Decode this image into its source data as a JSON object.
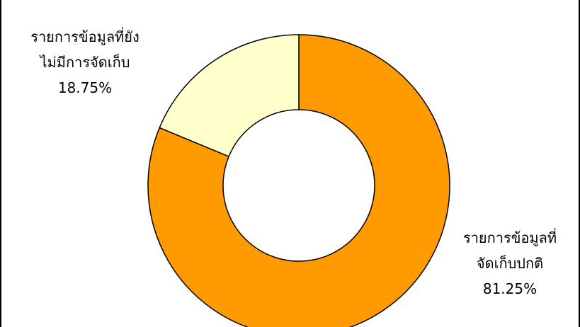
{
  "chart_data": {
    "type": "pie",
    "variant": "donut",
    "title": "",
    "categories": [
      "รายการข้อมูลที่จัดเก็บปกติ",
      "รายการข้อมูลที่ยังไม่มีการจัดเก็บ"
    ],
    "values": [
      81.25,
      18.75
    ],
    "unit": "%",
    "colors": [
      "#ff9a00",
      "#ffffcc"
    ],
    "outline_color": "#000000",
    "start_angle": "12 o'clock",
    "direction": "clockwise",
    "legend": "none",
    "data_labels": [
      {
        "lines": [
          "รายการข้อมูลที่",
          "จัดเก็บปกติ"
        ],
        "value": "81.25%",
        "placement": "bottom-right"
      },
      {
        "lines": [
          "รายการข้อมูลที่ยัง",
          "ไม่มีการจัดเก็บ"
        ],
        "value": "18.75%",
        "placement": "top-left"
      }
    ]
  },
  "top_cut_text": "ุ      ู้        ุ"
}
